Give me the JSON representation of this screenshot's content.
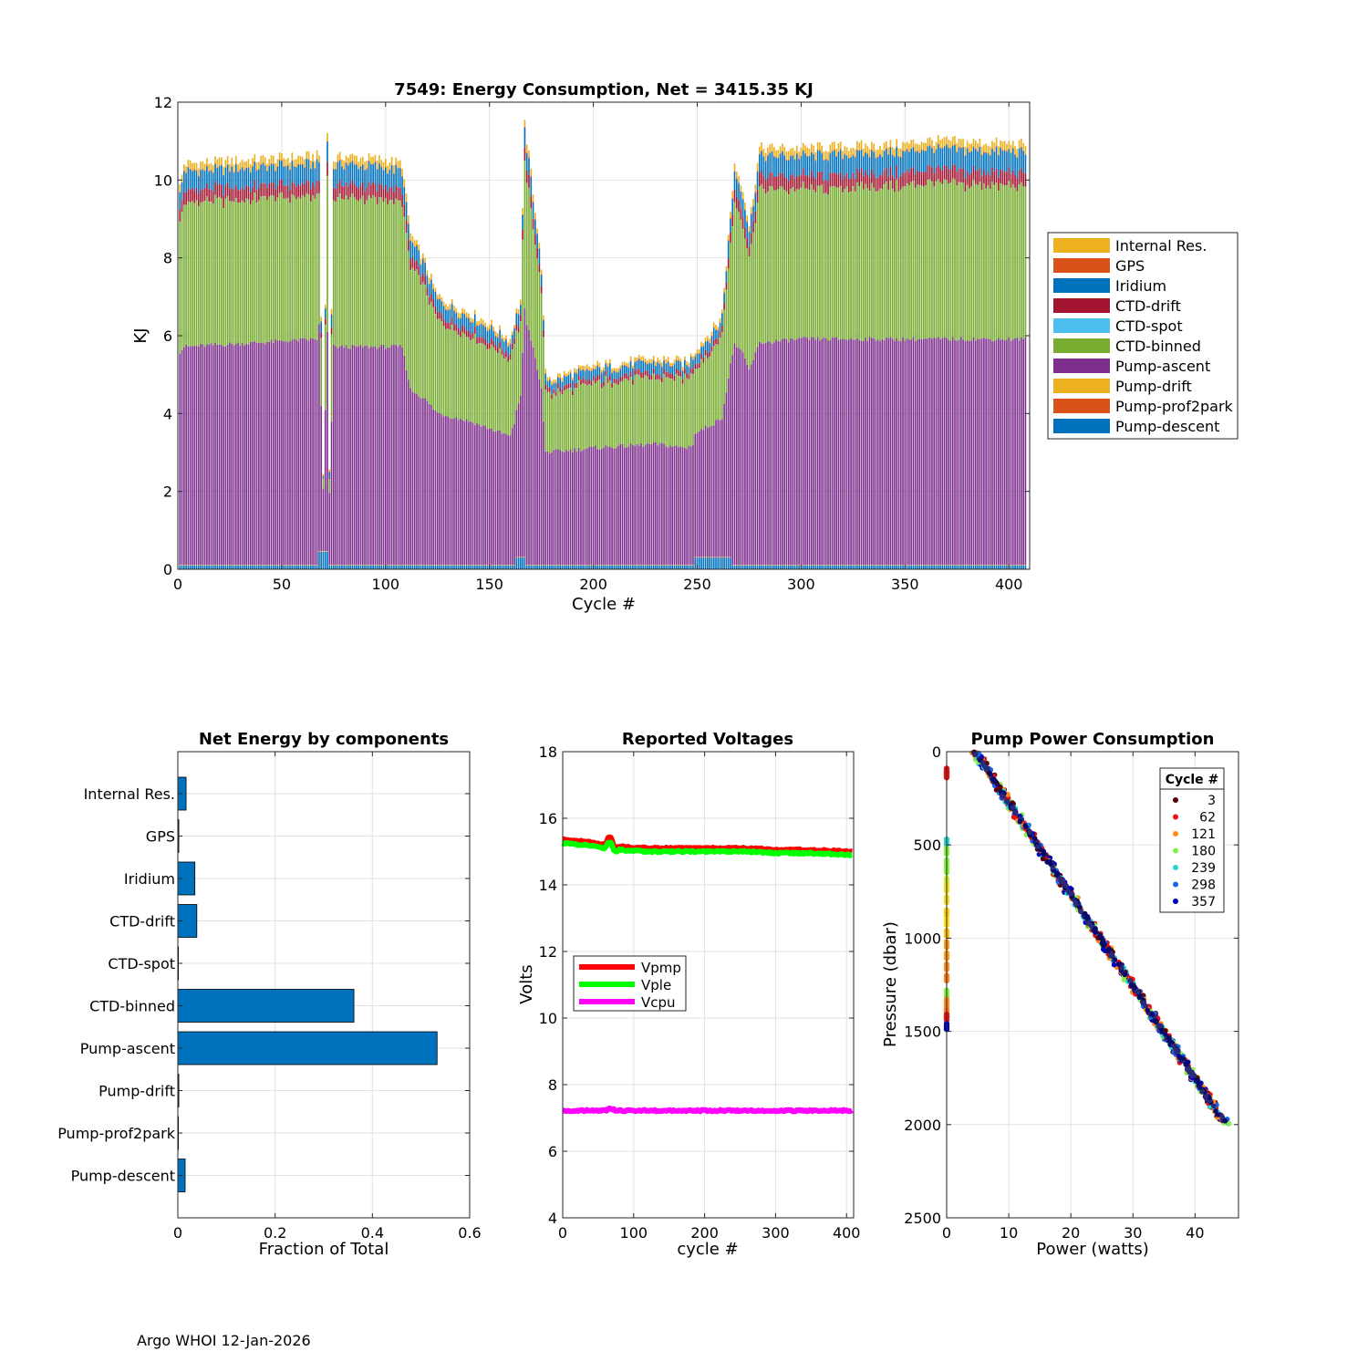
{
  "colors": {
    "pump_descent": "#0072BD",
    "pump_prof2park": "#D95319",
    "pump_drift": "#EDB120",
    "pump_ascent": "#7E2F8E",
    "ctd_binned": "#77AC30",
    "ctd_spot": "#4DBEEE",
    "ctd_drift": "#A2142F",
    "iridium": "#0072BD",
    "gps": "#D95319",
    "internal_res": "#EDB120",
    "vpmp": "#FF0000",
    "vple": "#00FF00",
    "vcpu": "#FF00FF",
    "hbar": "#0072BD"
  },
  "footer": {
    "text": "Argo WHOI 12-Jan-2026"
  },
  "chart_data": [
    {
      "id": "energy",
      "type": "bar",
      "stacked": true,
      "title": "7549: Energy Consumption,  Net = 3415.35 KJ",
      "xlabel": "Cycle #",
      "ylabel": "KJ",
      "xlim": [
        0,
        410
      ],
      "ylim": [
        0,
        12
      ],
      "xticks": [
        0,
        50,
        100,
        150,
        200,
        250,
        300,
        350,
        400
      ],
      "yticks": [
        0,
        2,
        4,
        6,
        8,
        10,
        12
      ],
      "grid": true,
      "legend_position": "outside-right",
      "legend": [
        "Internal Res.",
        "GPS",
        "Iridium",
        "CTD-drift",
        "CTD-spot",
        "CTD-binned",
        "Pump-ascent",
        "Pump-drift",
        "Pump-prof2park",
        "Pump-descent"
      ],
      "profile_cycles": [
        0,
        3,
        68,
        70,
        72,
        73,
        75,
        80,
        100,
        108,
        112,
        118,
        125,
        132,
        140,
        150,
        160,
        163,
        165,
        167,
        170,
        175,
        177,
        180,
        200,
        230,
        245,
        250,
        260,
        262,
        265,
        268,
        272,
        275,
        280,
        300,
        350,
        360,
        410
      ],
      "profile_total": [
        9.5,
        10.4,
        10.6,
        2.4,
        11.2,
        2.7,
        10.5,
        10.6,
        10.5,
        10.4,
        8.6,
        8.0,
        7.0,
        6.8,
        6.6,
        6.3,
        5.9,
        6.6,
        6.9,
        11.4,
        10.2,
        7.8,
        5.0,
        4.9,
        5.2,
        5.4,
        5.3,
        5.7,
        6.3,
        6.6,
        8.5,
        10.4,
        9.8,
        8.8,
        10.8,
        10.8,
        10.9,
        11.0,
        10.9
      ],
      "profile_ascent": [
        5.4,
        5.6,
        5.8,
        1.6,
        5.6,
        1.8,
        5.6,
        5.6,
        5.6,
        5.6,
        4.5,
        4.3,
        3.9,
        3.8,
        3.7,
        3.5,
        3.3,
        3.8,
        4.1,
        6.4,
        5.8,
        4.5,
        2.9,
        2.9,
        3.0,
        3.1,
        3.0,
        3.2,
        3.5,
        3.6,
        4.6,
        5.7,
        5.4,
        5.0,
        5.7,
        5.8,
        5.8,
        5.8,
        5.8
      ],
      "descent_level": 0.1,
      "descent_spikes": [
        {
          "from": 68,
          "to": 72,
          "value": 0.45
        },
        {
          "from": 163,
          "to": 167,
          "value": 0.3
        },
        {
          "from": 249,
          "to": 266,
          "value": 0.3
        }
      ]
    },
    {
      "id": "components",
      "type": "bar",
      "orientation": "horizontal",
      "title": "Net Energy by components",
      "xlabel": "Fraction of Total",
      "xlim": [
        0,
        0.6
      ],
      "xticks": [
        0,
        0.2,
        0.4,
        0.6
      ],
      "xtick_labels": [
        "0",
        "0.2",
        "0.4",
        "0.6"
      ],
      "grid": true,
      "categories": [
        "Internal Res.",
        "GPS",
        "Iridium",
        "CTD-drift",
        "CTD-spot",
        "CTD-binned",
        "Pump-ascent",
        "Pump-drift",
        "Pump-prof2park",
        "Pump-descent"
      ],
      "values": [
        0.017,
        0.002,
        0.035,
        0.039,
        0.0,
        0.362,
        0.533,
        0.002,
        0.0,
        0.015
      ]
    },
    {
      "id": "voltages",
      "type": "line",
      "title": "Reported Voltages",
      "xlabel": "cycle #",
      "ylabel": "Volts",
      "xlim": [
        0,
        410
      ],
      "ylim": [
        4,
        18
      ],
      "xticks": [
        0,
        100,
        200,
        300,
        400
      ],
      "yticks": [
        4,
        6,
        8,
        10,
        12,
        14,
        16,
        18
      ],
      "grid": true,
      "legend_position": "center-left",
      "series": [
        {
          "name": "Vpmp",
          "x": [
            0,
            30,
            60,
            65,
            68,
            72,
            75,
            80,
            120,
            200,
            260,
            300,
            350,
            410
          ],
          "y": [
            15.35,
            15.3,
            15.2,
            15.45,
            15.4,
            15.15,
            15.1,
            15.15,
            15.1,
            15.1,
            15.1,
            15.05,
            15.05,
            15.0
          ]
        },
        {
          "name": "Vple",
          "x": [
            0,
            30,
            60,
            65,
            68,
            72,
            75,
            80,
            120,
            200,
            260,
            300,
            350,
            410
          ],
          "y": [
            15.25,
            15.2,
            15.1,
            15.3,
            15.25,
            15.05,
            15.0,
            15.05,
            15.0,
            15.0,
            15.0,
            14.95,
            14.95,
            14.9
          ]
        },
        {
          "name": "Vcpu",
          "x": [
            0,
            60,
            68,
            75,
            200,
            410
          ],
          "y": [
            7.22,
            7.22,
            7.28,
            7.22,
            7.22,
            7.22
          ]
        }
      ]
    },
    {
      "id": "pump",
      "type": "scatter",
      "title": "Pump Power Consumption",
      "xlabel": "Power (watts)",
      "ylabel": "Pressure (dbar)",
      "xlim": [
        0,
        47
      ],
      "ylim": [
        0,
        2500
      ],
      "y_reversed": true,
      "xticks": [
        0,
        10,
        20,
        30,
        40
      ],
      "yticks": [
        0,
        500,
        1000,
        1500,
        2000,
        2500
      ],
      "grid": true,
      "legend_title": "Cycle #",
      "legend_position": "top-right",
      "legend": [
        "3",
        "62",
        "121",
        "180",
        "239",
        "298",
        "357"
      ],
      "legend_colors": [
        "#5a0000",
        "#e81010",
        "#ff8a1a",
        "#86f046",
        "#2ad5d0",
        "#1a66e8",
        "#0000c0"
      ],
      "trend_line": {
        "x": [
          4.5,
          45.0
        ],
        "y": [
          0,
          2000
        ]
      },
      "zero_power_points": {
        "pressures": [
          90,
          100,
          110,
          470,
          520,
          580,
          620,
          680,
          720,
          780,
          850,
          900,
          960,
          1020,
          1080,
          1140,
          1200,
          1280,
          1300,
          1330,
          1360,
          1390,
          1410,
          1460
        ],
        "colors": [
          "#e81010",
          "#e81010",
          "#e81010",
          "#2ad5d0",
          "#86f046",
          "#86f046",
          "#86f046",
          "#c8f030",
          "#f0e020",
          "#f0e020",
          "#ffd000",
          "#ffe000",
          "#ffc000",
          "#ff9a20",
          "#ffa020",
          "#ff9020",
          "#ff8020",
          "#86f046",
          "#86f046",
          "#ff8a1a",
          "#ff8a1a",
          "#ff7020",
          "#e81010",
          "#0000c0"
        ]
      }
    }
  ]
}
